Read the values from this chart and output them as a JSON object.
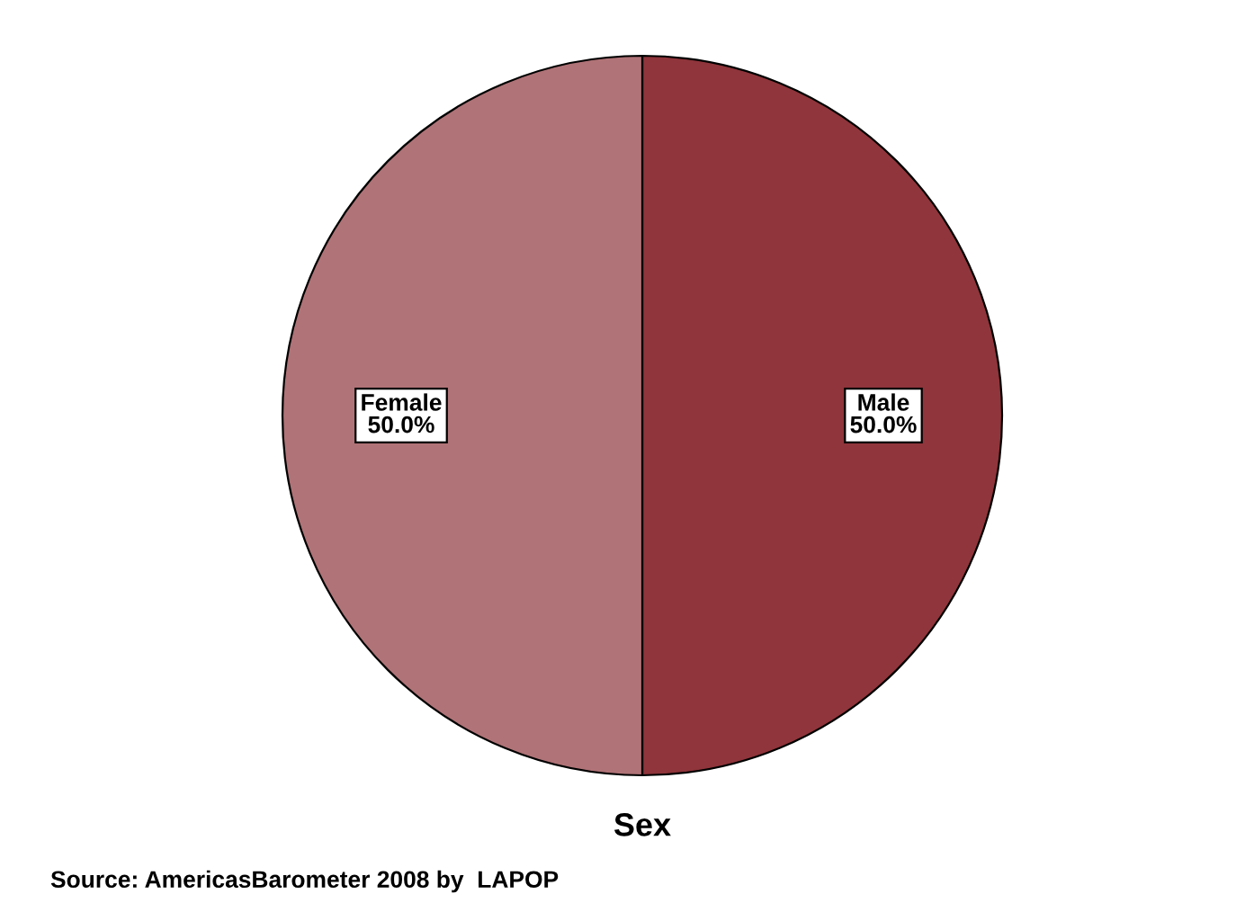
{
  "chart_data": {
    "type": "pie",
    "xlabel": "Sex",
    "categories": [
      "Male",
      "Female"
    ],
    "values": [
      50,
      50
    ],
    "colors": [
      "#8f353b",
      "#b07377"
    ],
    "value_labels": [
      "50.0%",
      "50.0%"
    ],
    "annotations": [
      "Source: AmericasBarometer 2008 by  LAPOP"
    ]
  }
}
